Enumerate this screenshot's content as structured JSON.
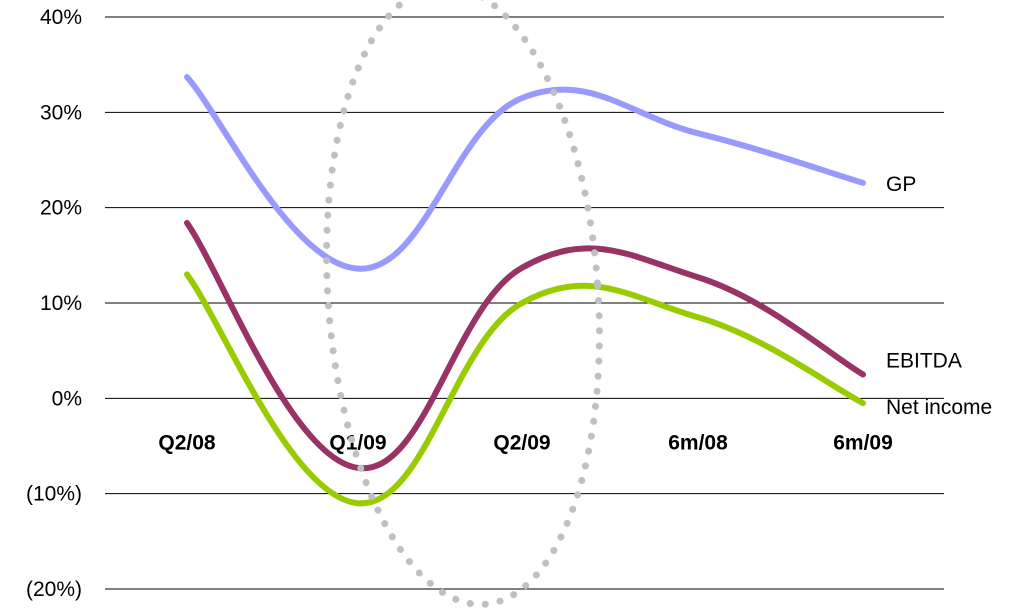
{
  "chart_data": {
    "type": "line",
    "categories": [
      "Q2/08",
      "Q1/09",
      "Q2/09",
      "6m/08",
      "6m/09"
    ],
    "ylim": [
      -0.2,
      0.4
    ],
    "y_ticks": [
      {
        "value": 0.4,
        "label": "40%"
      },
      {
        "value": 0.3,
        "label": "30%"
      },
      {
        "value": 0.2,
        "label": "20%"
      },
      {
        "value": 0.1,
        "label": "10%"
      },
      {
        "value": 0.0,
        "label": "0%"
      },
      {
        "value": -0.1,
        "label": "(10%)"
      },
      {
        "value": -0.2,
        "label": "(20%)"
      }
    ],
    "grid": true,
    "legend": "end-of-line labels",
    "series": [
      {
        "name": "GP",
        "color": "#9999ff",
        "values": [
          0.337,
          0.136,
          0.315,
          0.278,
          0.226
        ]
      },
      {
        "name": "EBITDA",
        "color": "#993366",
        "values": [
          0.184,
          -0.073,
          0.137,
          0.127,
          0.025
        ]
      },
      {
        "name": "Net income",
        "color": "#99cc00",
        "values": [
          0.13,
          -0.11,
          0.1,
          0.085,
          -0.005
        ]
      }
    ],
    "annotation": {
      "type": "dotted-ellipse",
      "color": "#c0c0c0",
      "highlight_categories": [
        "Q1/09",
        "Q2/09"
      ]
    }
  }
}
